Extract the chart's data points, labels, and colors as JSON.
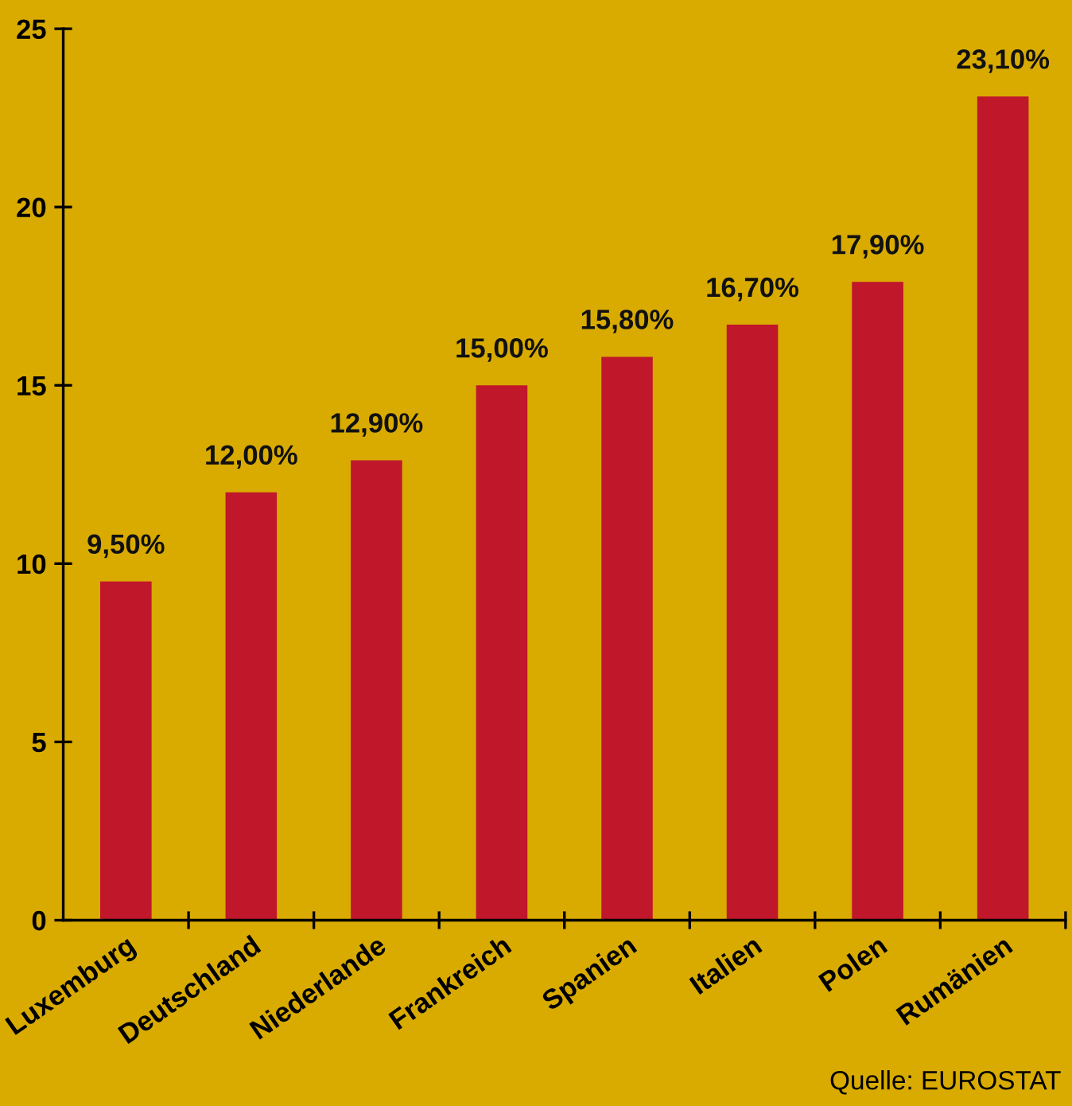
{
  "chart_data": {
    "type": "bar",
    "categories": [
      "Luxemburg",
      "Deutschland",
      "Niederlande",
      "Frankreich",
      "Spanien",
      "Italien",
      "Polen",
      "Rumänien"
    ],
    "values": [
      9.5,
      12.0,
      12.9,
      15.0,
      15.8,
      16.7,
      17.9,
      23.1
    ],
    "value_labels": [
      "9,50%",
      "12,00%",
      "12,90%",
      "15,00%",
      "15,80%",
      "16,70%",
      "17,90%",
      "23,10%"
    ],
    "color": "#c0172b",
    "ylim": [
      0,
      25
    ],
    "yticks": [
      0,
      5,
      10,
      15,
      20,
      25
    ],
    "grid": false,
    "legend": false,
    "annotations": [
      "Quelle: EUROSTAT"
    ]
  }
}
